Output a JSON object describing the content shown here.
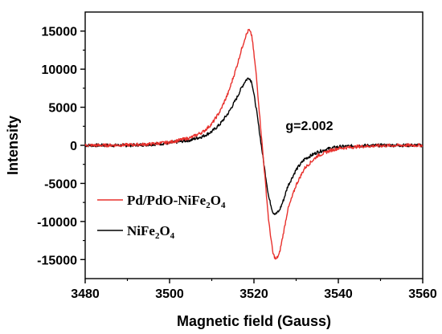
{
  "chart_data": {
    "type": "line",
    "xlabel": "Magnetic field (Gauss)",
    "ylabel": "Intensity",
    "xlim": [
      3480,
      3560
    ],
    "ylim": [
      -17500,
      17500
    ],
    "xticks": [
      3480,
      3500,
      3520,
      3540,
      3560
    ],
    "yticks": [
      -15000,
      -10000,
      -5000,
      0,
      5000,
      10000,
      15000
    ],
    "xtick_labels": [
      "3480",
      "3500",
      "3520",
      "3540",
      "3560"
    ],
    "ytick_labels": [
      "-15000",
      "-10000",
      "-5000",
      "0",
      "5000",
      "10000",
      "15000"
    ],
    "annotation": {
      "text": "g=2.002",
      "x": 3527.5,
      "y": 2000
    },
    "legend": {
      "position": "lower-left"
    },
    "series": [
      {
        "name": "Pd/PdO-NiFe2O4",
        "legend_main": "Pd/PdO-NiFe",
        "legend_sub1": "2",
        "legend_mid": "O",
        "legend_sub2": "4",
        "color": "#e8302c",
        "x": [
          3480,
          3485,
          3490,
          3495,
          3500,
          3505,
          3508,
          3510,
          3512,
          3514,
          3516,
          3517,
          3518,
          3518.8,
          3519.5,
          3520.5,
          3521.5,
          3522.5,
          3523.5,
          3524.5,
          3525.2,
          3526,
          3527,
          3528,
          3530,
          3532,
          3535,
          3538,
          3540,
          3545,
          3550,
          3555,
          3560
        ],
        "y": [
          0,
          0,
          50,
          150,
          400,
          1000,
          1800,
          2800,
          4500,
          7000,
          10500,
          12500,
          14300,
          15200,
          14400,
          9500,
          3000,
          -3500,
          -10000,
          -14200,
          -15000,
          -14300,
          -11500,
          -8500,
          -5200,
          -3000,
          -1400,
          -700,
          -400,
          -150,
          -50,
          0,
          0
        ]
      },
      {
        "name": "NiFe2O4",
        "legend_main": "NiFe",
        "legend_sub1": "2",
        "legend_mid": "O",
        "legend_sub2": "4",
        "color": "#000000",
        "x": [
          3480,
          3485,
          3490,
          3495,
          3500,
          3505,
          3508,
          3510,
          3512,
          3514,
          3516,
          3517,
          3518,
          3518.8,
          3519.5,
          3520.5,
          3521.5,
          3522.5,
          3523.5,
          3524.5,
          3525.2,
          3526,
          3527,
          3528,
          3530,
          3532,
          3535,
          3538,
          3540,
          3545,
          3550,
          3555,
          3560
        ],
        "y": [
          0,
          0,
          0,
          100,
          300,
          700,
          1200,
          1800,
          2800,
          4300,
          6300,
          7500,
          8500,
          8900,
          8300,
          5000,
          1000,
          -3000,
          -6800,
          -8800,
          -9000,
          -8600,
          -7200,
          -5400,
          -3200,
          -1800,
          -900,
          -400,
          -200,
          -50,
          0,
          0,
          0
        ]
      }
    ]
  }
}
